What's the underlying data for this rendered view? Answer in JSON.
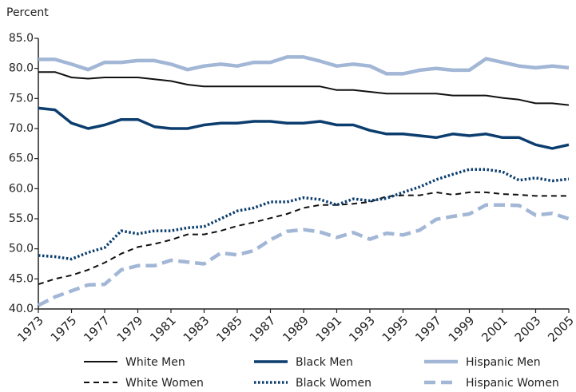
{
  "chart_data": {
    "type": "line",
    "y_label": "Percent",
    "x": [
      1973,
      1974,
      1975,
      1976,
      1977,
      1978,
      1979,
      1980,
      1981,
      1982,
      1983,
      1984,
      1985,
      1986,
      1987,
      1988,
      1989,
      1990,
      1991,
      1992,
      1993,
      1994,
      1995,
      1996,
      1997,
      1998,
      1999,
      2000,
      2001,
      2002,
      2003,
      2004,
      2005
    ],
    "xlim": [
      1973,
      2005
    ],
    "xticks": [
      1973,
      1975,
      1977,
      1979,
      1981,
      1983,
      1985,
      1987,
      1989,
      1991,
      1993,
      1995,
      1997,
      1999,
      2001,
      2003,
      2005
    ],
    "ylim": [
      40,
      85
    ],
    "yticks": [
      {
        "value": 40,
        "label": "40.0"
      },
      {
        "value": 45,
        "label": "45.0"
      },
      {
        "value": 50,
        "label": "50.0"
      },
      {
        "value": 55,
        "label": "55.0"
      },
      {
        "value": 60,
        "label": "60.0"
      },
      {
        "value": 65,
        "label": "65.0"
      },
      {
        "value": 70,
        "label": "70.0"
      },
      {
        "value": 75,
        "label": "75.0"
      },
      {
        "value": 80,
        "label": "80.0"
      },
      {
        "value": 85,
        "label": "85.0"
      }
    ],
    "grid": false,
    "legend": "bottom",
    "series": [
      {
        "name": "White Men",
        "color": "#111111",
        "dash": "solid",
        "width": 2,
        "values": [
          79.4,
          79.4,
          78.5,
          78.3,
          78.5,
          78.5,
          78.5,
          78.2,
          77.9,
          77.3,
          77.0,
          77.0,
          77.0,
          77.0,
          77.0,
          77.0,
          77.0,
          77.0,
          76.4,
          76.4,
          76.1,
          75.8,
          75.8,
          75.8,
          75.8,
          75.5,
          75.5,
          75.5,
          75.1,
          74.8,
          74.2,
          74.2,
          73.9
        ]
      },
      {
        "name": "Black Men",
        "color": "#0b3d6e",
        "dash": "solid",
        "width": 3.5,
        "values": [
          73.4,
          73.1,
          70.9,
          70.0,
          70.6,
          71.5,
          71.5,
          70.3,
          70.0,
          70.0,
          70.6,
          70.9,
          70.9,
          71.2,
          71.2,
          70.9,
          70.9,
          71.2,
          70.6,
          70.6,
          69.7,
          69.1,
          69.1,
          68.8,
          68.5,
          69.1,
          68.8,
          69.1,
          68.5,
          68.5,
          67.3,
          66.7,
          67.3
        ]
      },
      {
        "name": "Hispanic Men",
        "color": "#a2b6d6",
        "dash": "solid",
        "width": 4.5,
        "values": [
          81.5,
          81.5,
          80.7,
          79.8,
          81.0,
          81.0,
          81.3,
          81.3,
          80.7,
          79.8,
          80.4,
          80.7,
          80.4,
          81.0,
          81.0,
          81.9,
          81.9,
          81.2,
          80.4,
          80.7,
          80.4,
          79.1,
          79.1,
          79.7,
          80.0,
          79.7,
          79.7,
          81.6,
          81.0,
          80.4,
          80.1,
          80.4,
          80.1
        ]
      },
      {
        "name": "White Women",
        "color": "#111111",
        "dash": "dashed",
        "width": 2,
        "values": [
          44.1,
          45.0,
          45.6,
          46.5,
          47.7,
          49.2,
          50.3,
          50.8,
          51.5,
          52.4,
          52.4,
          53.0,
          53.8,
          54.4,
          55.1,
          55.8,
          56.8,
          57.3,
          57.3,
          57.5,
          57.8,
          58.7,
          58.9,
          58.9,
          59.4,
          59.0,
          59.4,
          59.4,
          59.1,
          59.0,
          58.8,
          58.8,
          58.8
        ]
      },
      {
        "name": "Black Women",
        "color": "#0b3d6e",
        "dash": "dotted",
        "width": 3.5,
        "values": [
          48.9,
          48.7,
          48.3,
          49.4,
          50.2,
          53.0,
          52.5,
          53.0,
          53.0,
          53.5,
          53.7,
          55.0,
          56.3,
          56.8,
          57.8,
          57.8,
          58.5,
          58.2,
          57.3,
          58.3,
          58.0,
          58.4,
          59.4,
          60.3,
          61.5,
          62.4,
          63.2,
          63.2,
          62.8,
          61.4,
          61.8,
          61.3,
          61.6
        ]
      },
      {
        "name": "Hispanic Women",
        "color": "#a2b6d6",
        "dash": "longdash",
        "width": 4.5,
        "values": [
          40.6,
          42.0,
          43.0,
          44.0,
          44.1,
          46.5,
          47.2,
          47.2,
          48.1,
          47.8,
          47.5,
          49.3,
          49.0,
          49.7,
          51.5,
          52.9,
          53.2,
          52.8,
          51.9,
          52.7,
          51.6,
          52.6,
          52.3,
          53.1,
          54.9,
          55.4,
          55.8,
          57.3,
          57.3,
          57.2,
          55.6,
          55.9,
          55.0
        ]
      }
    ]
  }
}
